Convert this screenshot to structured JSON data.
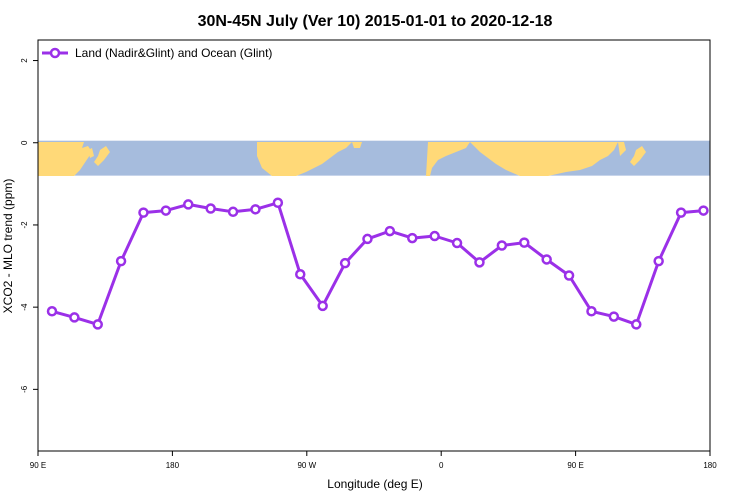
{
  "chart_data": {
    "type": "line",
    "title": "30N-45N July (Ver 10)   2015-01-01 to 2020-12-18",
    "xlabel": "Longitude (deg E)",
    "ylabel": "XCO2 - MLO trend (ppm)",
    "xlim": [
      90,
      450
    ],
    "ylim": [
      -7.5,
      2.5
    ],
    "x_ticks": [
      90,
      162,
      234,
      306,
      378,
      450
    ],
    "x_tick_labels": [
      "90 E",
      "180",
      "90 W",
      "0",
      "90 E",
      "180"
    ],
    "y_ticks": [
      -6,
      -4,
      -2,
      0,
      2
    ],
    "y_tick_labels": [
      "-6",
      "-4",
      "-2",
      "0",
      "2"
    ],
    "grid": false,
    "legend_position": "top-left",
    "map_band": {
      "y_range": [
        -0.8,
        0.05
      ],
      "land_color": "#FFD978",
      "ocean_color": "#A6BCDD"
    },
    "series": [
      {
        "name": "Land (Nadir&Glint) and Ocean (Glint)",
        "color": "#9B30E8",
        "x": [
          97.5,
          109.5,
          122,
          134.5,
          146.5,
          158.5,
          170.5,
          182.5,
          194.5,
          206.5,
          218.5,
          230.5,
          242.5,
          254.5,
          266.5,
          278.5,
          290.5,
          302.5,
          314.5,
          326.5,
          338.5,
          350.5,
          362.5,
          374.5,
          386.5,
          398.5,
          410.5,
          422.5,
          434.5,
          446.5
        ],
        "y": [
          -4.1,
          -4.25,
          -4.42,
          -2.88,
          -1.7,
          -1.65,
          -1.5,
          -1.6,
          -1.68,
          -1.62,
          -1.46,
          -3.2,
          -3.97,
          -2.93,
          -2.34,
          -2.15,
          -2.32,
          -2.27,
          -2.44,
          -2.91,
          -2.5,
          -2.43,
          -2.84,
          -3.23,
          -4.1,
          -4.23,
          -4.42,
          -2.88,
          -1.7,
          -1.65
        ]
      }
    ]
  }
}
